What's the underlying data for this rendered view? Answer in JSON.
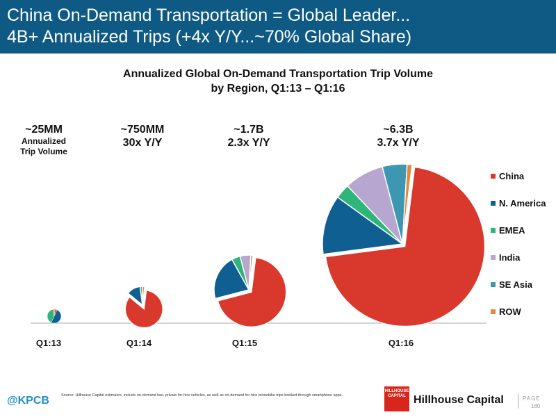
{
  "header": {
    "line1": "China On-Demand Transportation = Global Leader...",
    "line2": "4B+ Annualized Trips (+4x Y/Y...~70% Global Share)"
  },
  "chart_data": {
    "type": "pie",
    "title_line1": "Annualized Global On-Demand Transportation Trip Volume",
    "title_line2": "by Region, Q1:13 – Q1:16",
    "regions": [
      "China",
      "N. America",
      "EMEA",
      "India",
      "SE Asia",
      "ROW"
    ],
    "colors": [
      "#d9392d",
      "#0f5f93",
      "#2fb57a",
      "#b7a6cf",
      "#3d97b3",
      "#e08a3c"
    ],
    "pies": [
      {
        "label": "Q1:13",
        "volume_mm": 25,
        "annotation": [
          "~25MM",
          "Annualized",
          "Trip Volume"
        ],
        "shares": [
          0.05,
          0.5,
          0.4,
          0.0,
          0.0,
          0.05
        ]
      },
      {
        "label": "Q1:14",
        "volume_mm": 750,
        "annotation": [
          "~750MM",
          "30x Y/Y"
        ],
        "shares": [
          0.84,
          0.12,
          0.02,
          0.0,
          0.0,
          0.02
        ]
      },
      {
        "label": "Q1:15",
        "volume_mm": 1700,
        "annotation": [
          "~1.7B",
          "2.3x Y/Y"
        ],
        "shares": [
          0.69,
          0.21,
          0.04,
          0.05,
          0.0,
          0.01
        ]
      },
      {
        "label": "Q1:16",
        "volume_mm": 6300,
        "annotation": [
          "~6.3B",
          "3.7x Y/Y"
        ],
        "shares": [
          0.71,
          0.12,
          0.03,
          0.08,
          0.05,
          0.01
        ]
      }
    ],
    "legend_position": "right"
  },
  "footer": {
    "handle": "@KPCB",
    "source": "Source: Hillhouse Capital estimates, include on-demand taxi, private for-hire vehicles, as well as on-demand for-hire motorbike trips booked through smartphone apps.",
    "logo_text": "HILLHOUSE CAPITAL",
    "brand": "Hillhouse Capital",
    "page_label": "PAGE",
    "page_number": "180"
  }
}
